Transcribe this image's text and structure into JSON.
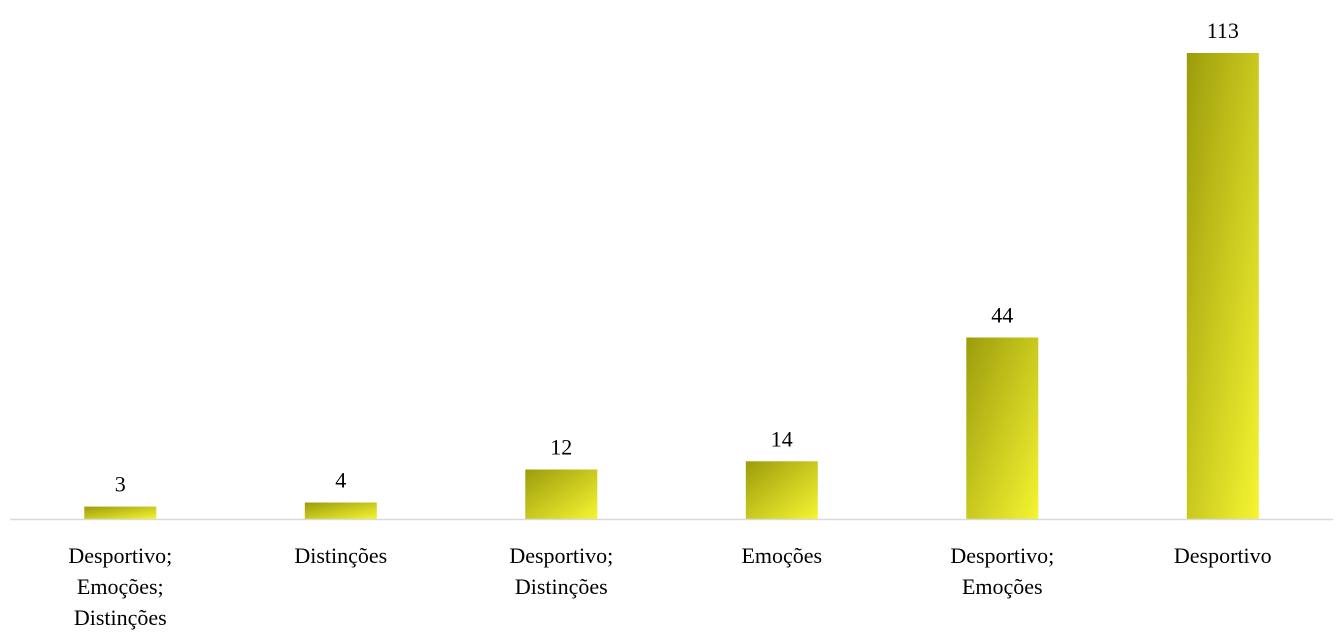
{
  "chart_data": {
    "type": "bar",
    "categories": [
      [
        "Desportivo;",
        "Emoções;",
        "Distinções"
      ],
      [
        "Distinções"
      ],
      [
        "Desportivo;",
        "Distinções"
      ],
      [
        "Emoções"
      ],
      [
        "Desportivo;",
        "Emoções"
      ],
      [
        "Desportivo"
      ]
    ],
    "values": [
      3,
      4,
      12,
      14,
      44,
      113
    ],
    "value_labels": [
      "3",
      "4",
      "12",
      "14",
      "44",
      "113"
    ],
    "ylim": [
      0,
      113
    ],
    "grid": false,
    "legend": "none",
    "colors": {
      "bar_dark": "#9c9c0c",
      "bar_light": "#f5f532",
      "axis": "#d9d9d9",
      "text": "#000000"
    }
  }
}
